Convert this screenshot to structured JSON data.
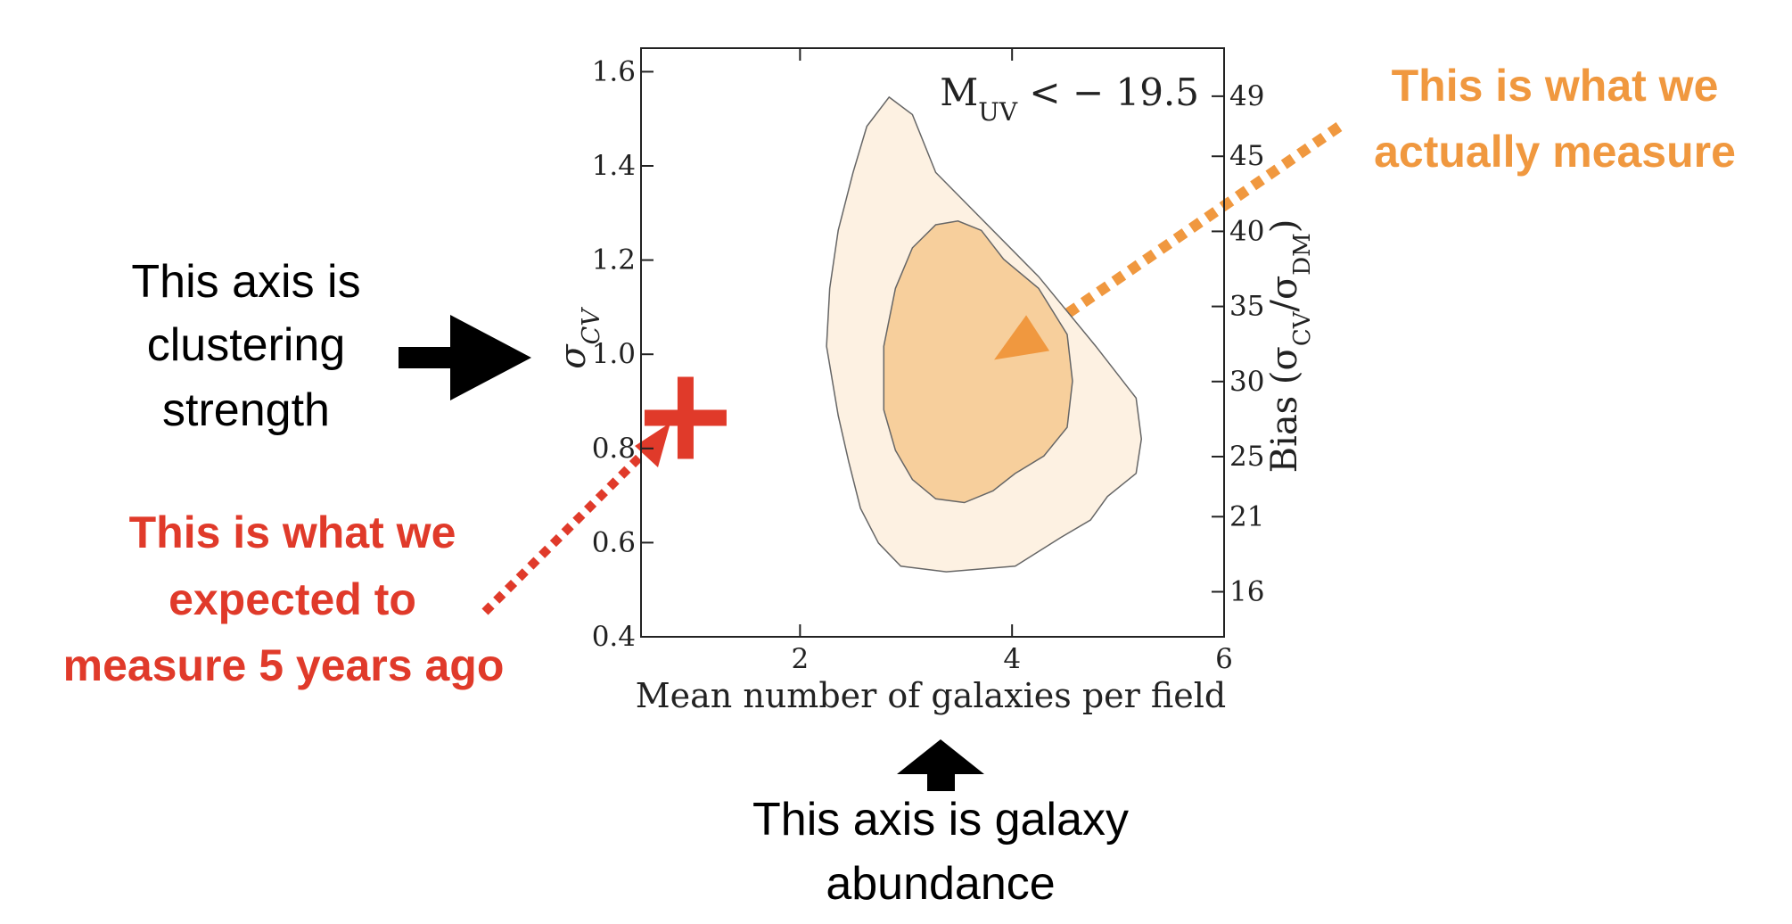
{
  "chart_data": {
    "type": "contour",
    "xlabel": "Mean number of galaxies per field",
    "ylabel": {
      "base": "σ",
      "sub": "CV"
    },
    "y2label": {
      "lead": "Bias (σ",
      "sub1": "CV",
      "mid": "/σ",
      "sub2": "DM",
      "end": ")"
    },
    "annotation": {
      "base": "M",
      "sub": "UV",
      "rest": " < − 19.5"
    },
    "xlim": [
      0.5,
      6
    ],
    "xticks": [
      2,
      4,
      6
    ],
    "ylim": [
      0.4,
      1.65
    ],
    "yticks": [
      {
        "value": 0.4,
        "label": "0.4"
      },
      {
        "value": 0.6,
        "label": "0.6"
      },
      {
        "value": 0.8,
        "label": "0.8"
      },
      {
        "value": 1.0,
        "label": "1.0"
      },
      {
        "value": 1.2,
        "label": "1.2"
      },
      {
        "value": 1.4,
        "label": "1.4"
      },
      {
        "value": 1.6,
        "label": "1.6"
      }
    ],
    "y2lim": [
      13,
      52.2
    ],
    "y2ticks": [
      16,
      21,
      25,
      30,
      35,
      40,
      45,
      49
    ],
    "series": [
      {
        "color": "#fdf1e2",
        "x": [
          2.84,
          3.06,
          3.28,
          3.71,
          4.25,
          4.79,
          5.17,
          5.22,
          5.17,
          4.9,
          4.74,
          4.46,
          4.03,
          3.38,
          2.95,
          2.74,
          2.57,
          2.46,
          2.36,
          2.25,
          2.28,
          2.36,
          2.5,
          2.63
        ],
        "y": [
          1.546,
          1.509,
          1.386,
          1.288,
          1.165,
          1.017,
          0.907,
          0.82,
          0.747,
          0.698,
          0.648,
          0.611,
          0.55,
          0.538,
          0.55,
          0.599,
          0.673,
          0.771,
          0.87,
          1.017,
          1.14,
          1.263,
          1.386,
          1.484
        ]
      },
      {
        "color": "#f7cf9c",
        "x": [
          3.28,
          3.49,
          3.71,
          3.92,
          4.25,
          4.52,
          4.57,
          4.52,
          4.3,
          4.03,
          3.82,
          3.55,
          3.28,
          3.06,
          2.9,
          2.79,
          2.79,
          2.9,
          3.06
        ],
        "y": [
          1.275,
          1.283,
          1.263,
          1.202,
          1.14,
          1.042,
          0.943,
          0.845,
          0.784,
          0.747,
          0.71,
          0.685,
          0.693,
          0.734,
          0.796,
          0.882,
          1.017,
          1.14,
          1.226
        ]
      }
    ],
    "markers": [
      {
        "shape": "triangle",
        "color": "#f0983f",
        "x": 4.1,
        "y": 1.03
      },
      {
        "shape": "cross",
        "color": "#e03a2a",
        "x": 0.92,
        "y": 0.865
      }
    ]
  },
  "notes": {
    "clustering": [
      "This axis is",
      "clustering",
      "strength"
    ],
    "expected": [
      "This is what we",
      "expected to",
      "measure 5 years ago"
    ],
    "measured": [
      "This is what we",
      "actually measure"
    ],
    "abundance": [
      "This axis is galaxy",
      "abundance"
    ]
  }
}
